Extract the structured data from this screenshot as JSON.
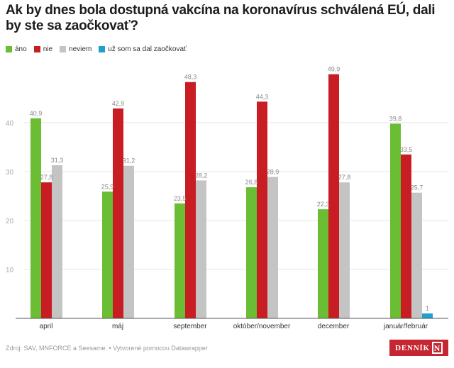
{
  "chart_data": {
    "type": "bar",
    "title": "Ak by dnes bola dostupná vakcína na koronavírus schválená EÚ, dali by ste sa zaočkovať?",
    "categories": [
      "april",
      "máj",
      "september",
      "október/november",
      "december",
      "január/február"
    ],
    "series": [
      {
        "name": "áno",
        "color": "#6bbd33",
        "values": [
          40.9,
          25.9,
          23.5,
          26.8,
          22.3,
          39.8
        ],
        "labels": [
          "40,9",
          "25,9",
          "23,5",
          "26,8",
          "22,3",
          "39,8"
        ]
      },
      {
        "name": "nie",
        "color": "#c81d22",
        "values": [
          27.8,
          42.9,
          48.3,
          44.3,
          49.9,
          33.5
        ],
        "labels": [
          "27,8",
          "42,9",
          "48,3",
          "44,3",
          "49,9",
          "33,5"
        ]
      },
      {
        "name": "neviem",
        "color": "#c4c4c4",
        "values": [
          31.3,
          31.2,
          28.2,
          28.9,
          27.8,
          25.7
        ],
        "labels": [
          "31,3",
          "31,2",
          "28,2",
          "28,9",
          "27,8",
          "25,7"
        ]
      },
      {
        "name": "už som sa dal zaočkovať",
        "color": "#1fa0cf",
        "values": [
          null,
          null,
          null,
          null,
          null,
          1
        ],
        "labels": [
          null,
          null,
          null,
          null,
          null,
          "1"
        ]
      }
    ],
    "yticks": [
      "10",
      "20",
      "30",
      "40"
    ],
    "ytick_values": [
      10,
      20,
      30,
      40
    ],
    "ylim": [
      0,
      50
    ],
    "xlabel": "",
    "ylabel": "",
    "grid": true,
    "legend_position": "top-left"
  },
  "footer": {
    "source": "Zdroj: SAV, MNFORCE a Seesame. • Vytvorené pomocou Datawrapper"
  },
  "logo": {
    "text": "DENNÍK",
    "mark": "N"
  }
}
